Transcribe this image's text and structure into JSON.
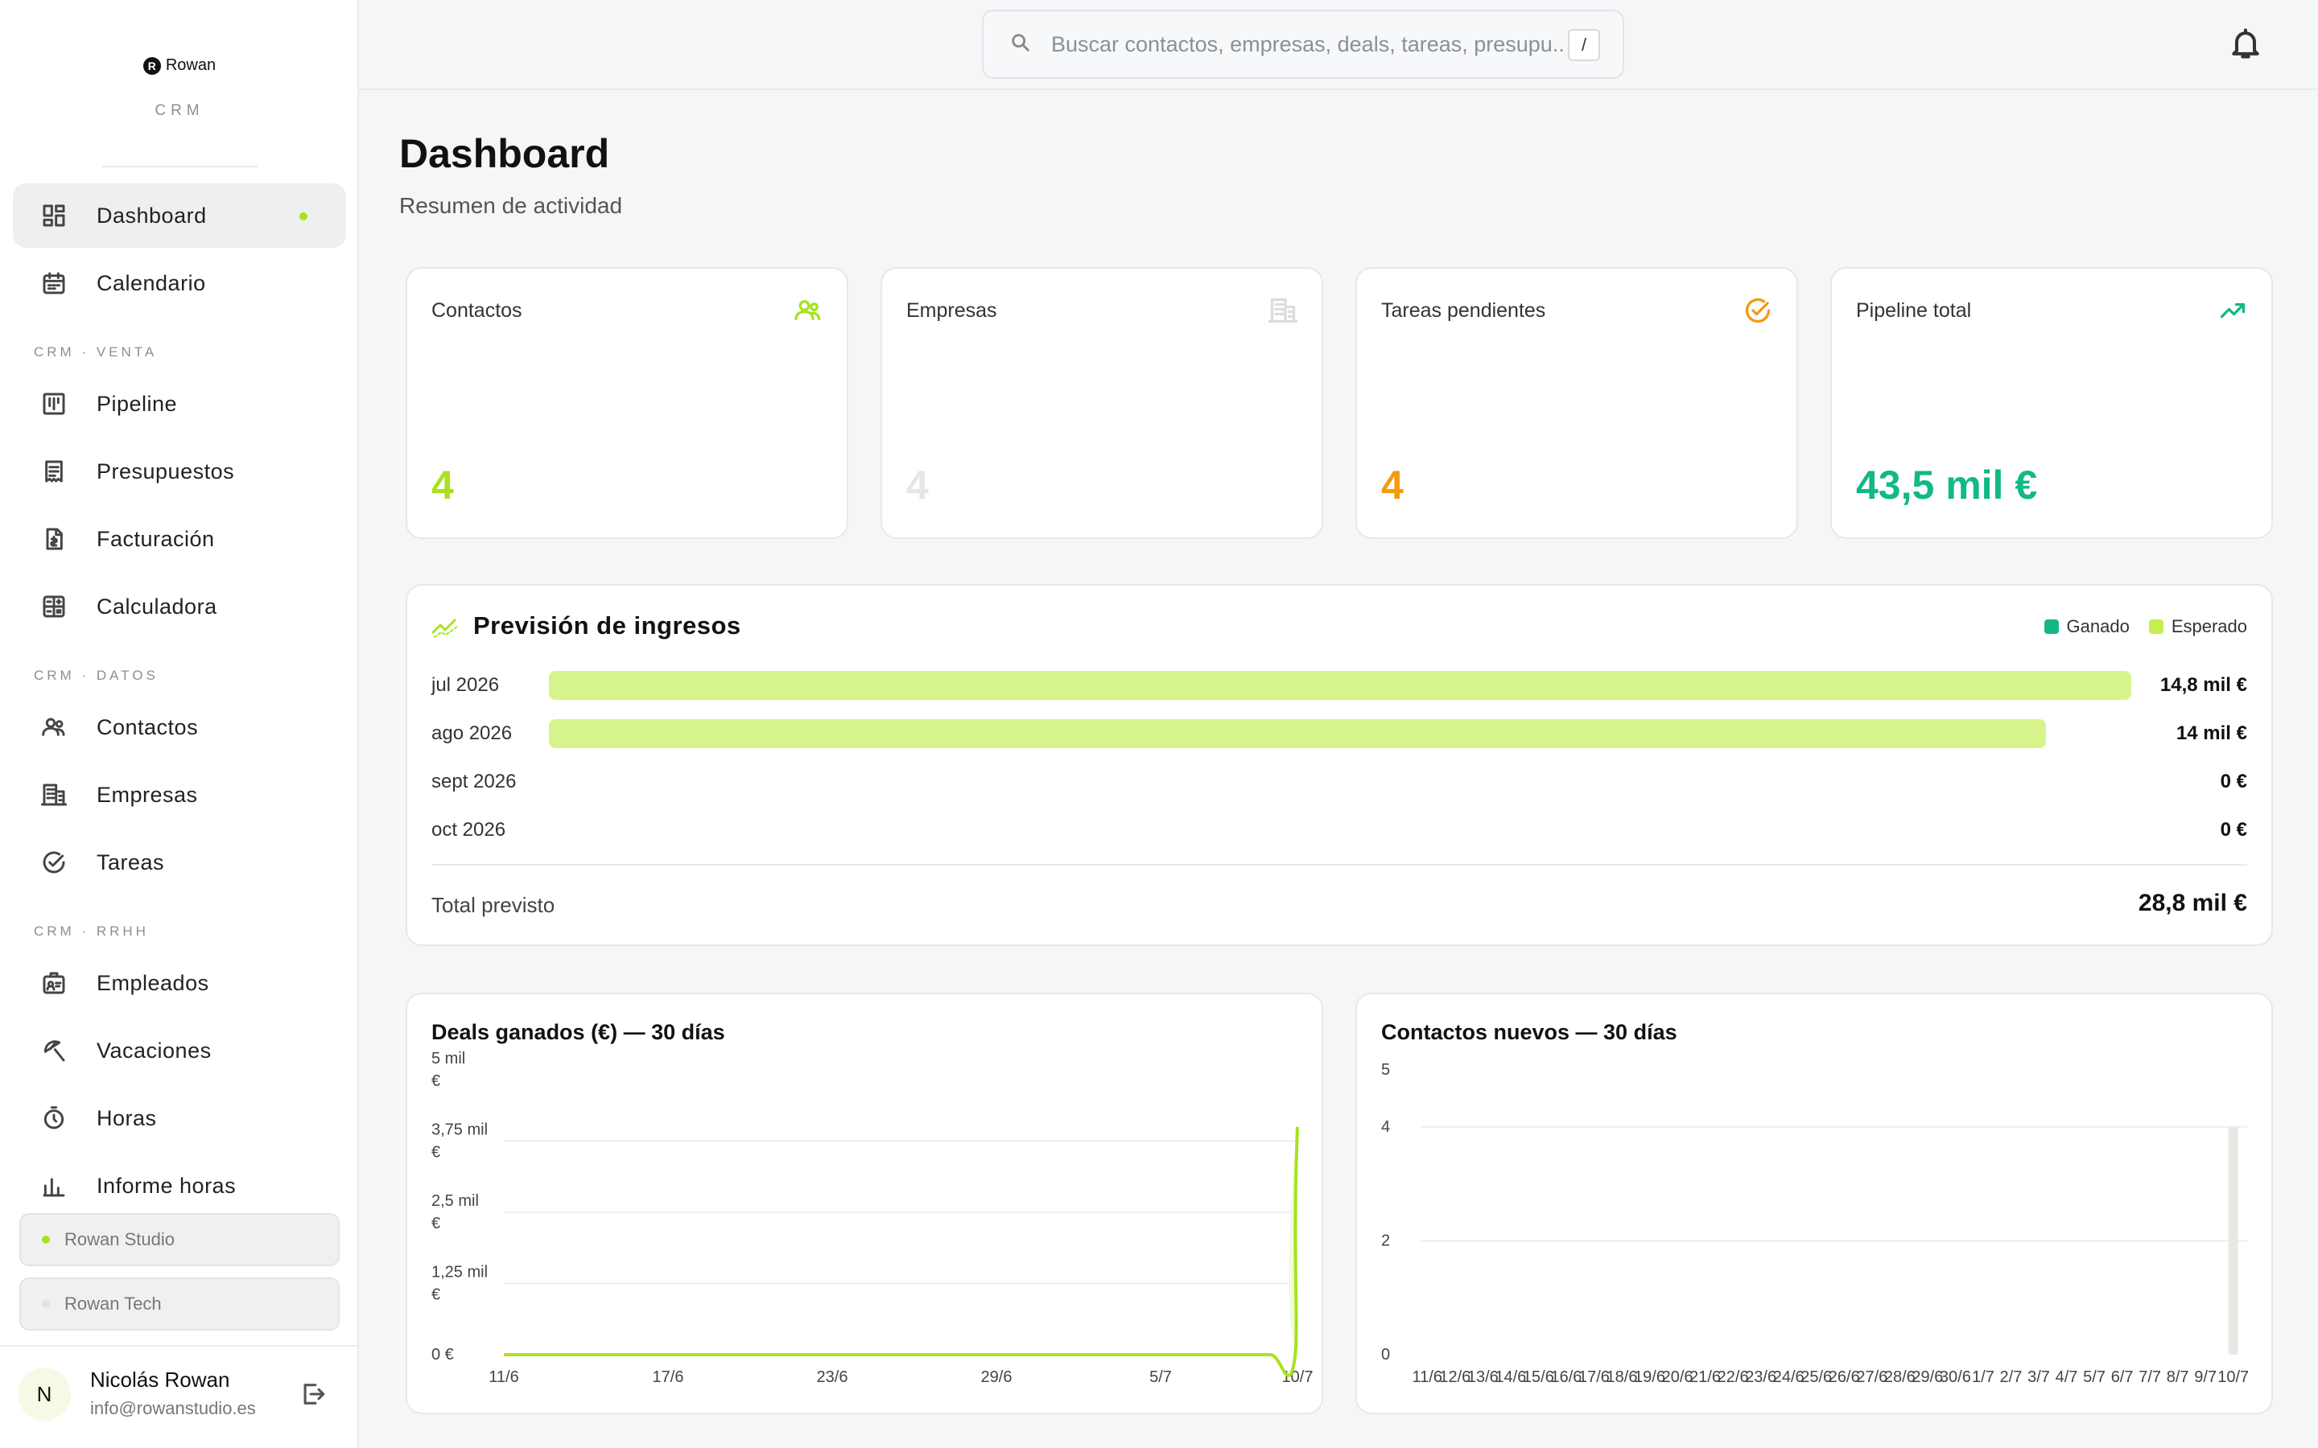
{
  "brand": {
    "logo_text": "Rowan",
    "logo_mark": "R",
    "subtitle": "CRM"
  },
  "sidebar": {
    "items": [
      {
        "label": "Dashboard",
        "icon": "dashboard-icon",
        "active": true
      },
      {
        "label": "Calendario",
        "icon": "calendar-icon"
      },
      {
        "label": "Pipeline",
        "icon": "pipeline-icon"
      },
      {
        "label": "Presupuestos",
        "icon": "receipt-icon"
      },
      {
        "label": "Facturación",
        "icon": "invoice-icon"
      },
      {
        "label": "Calculadora",
        "icon": "calculator-icon"
      },
      {
        "label": "Contactos",
        "icon": "contacts-icon"
      },
      {
        "label": "Empresas",
        "icon": "building-icon"
      },
      {
        "label": "Tareas",
        "icon": "check-circle-icon"
      },
      {
        "label": "Empleados",
        "icon": "badge-icon"
      },
      {
        "label": "Vacaciones",
        "icon": "beach-icon"
      },
      {
        "label": "Horas",
        "icon": "timer-icon"
      },
      {
        "label": "Informe horas",
        "icon": "bar-chart-icon"
      }
    ],
    "sections": [
      "CRM · VENTA",
      "CRM · DATOS",
      "CRM · RRHH"
    ],
    "workspaces": [
      {
        "label": "Rowan Studio",
        "dot_color": "#a8e21f"
      },
      {
        "label": "Rowan Tech",
        "dot_color": "#e2e2e2"
      }
    ]
  },
  "user": {
    "initial": "N",
    "name": "Nicolás Rowan",
    "email": "info@rowanstudio.es"
  },
  "search": {
    "placeholder": "Buscar contactos, empresas, deals, tareas, presupu...",
    "shortcut": "/"
  },
  "header": {
    "title": "Dashboard",
    "subtitle": "Resumen de actividad"
  },
  "stats": [
    {
      "label": "Contactos",
      "value": "4",
      "color": "#a8e21f",
      "icon": "contacts-icon"
    },
    {
      "label": "Empresas",
      "value": "4",
      "color": "#e6e6e6",
      "icon": "building-icon"
    },
    {
      "label": "Tareas pendientes",
      "value": "4",
      "color": "#f29b11",
      "icon": "check-circle-icon"
    },
    {
      "label": "Pipeline total",
      "value": "43,5 mil €",
      "color": "#12b886",
      "icon": "trending-up-icon"
    }
  ],
  "forecast": {
    "title": "Previsión de ingresos",
    "legend": [
      {
        "label": "Ganado",
        "color": "#12b886"
      },
      {
        "label": "Esperado",
        "color": "#c5ef4f"
      }
    ],
    "rows": [
      {
        "month": "jul 2026",
        "amount": "14,8 mil €",
        "value": 14.8
      },
      {
        "month": "ago 2026",
        "amount": "14 mil €",
        "value": 14.0
      },
      {
        "month": "sept 2026",
        "amount": "0 €",
        "value": 0
      },
      {
        "month": "oct 2026",
        "amount": "0 €",
        "value": 0
      }
    ],
    "total_label": "Total previsto",
    "total_value": "28,8 mil €"
  },
  "chart_data": [
    {
      "type": "line",
      "title": "Deals ganados (€) — 30 días",
      "x": [
        "11/6",
        "12/6",
        "13/6",
        "14/6",
        "15/6",
        "16/6",
        "17/6",
        "18/6",
        "19/6",
        "20/6",
        "21/6",
        "22/6",
        "23/6",
        "24/6",
        "25/6",
        "26/6",
        "27/6",
        "28/6",
        "29/6",
        "30/6",
        "1/7",
        "2/7",
        "3/7",
        "4/7",
        "5/7",
        "6/7",
        "7/7",
        "8/7",
        "9/7",
        "10/7"
      ],
      "tick_labels": [
        "11/6",
        "17/6",
        "23/6",
        "29/6",
        "5/7",
        "10/7"
      ],
      "y_tick_labels": [
        "0 €",
        "1,25 mil €",
        "2,5 mil €",
        "3,75 mil €",
        "5 mil €"
      ],
      "ylim": [
        0,
        5000
      ],
      "series": [
        {
          "values": [
            0,
            0,
            0,
            0,
            0,
            0,
            0,
            0,
            0,
            0,
            0,
            0,
            0,
            0,
            0,
            0,
            0,
            0,
            0,
            0,
            0,
            0,
            0,
            0,
            0,
            0,
            0,
            0,
            0,
            4000
          ],
          "color": "#a8e21f"
        }
      ],
      "grid": true
    },
    {
      "type": "bar",
      "title": "Contactos nuevos — 30 días",
      "categories": [
        "11/6",
        "12/6",
        "13/6",
        "14/6",
        "15/6",
        "16/6",
        "17/6",
        "18/6",
        "19/6",
        "20/6",
        "21/6",
        "22/6",
        "23/6",
        "24/6",
        "25/6",
        "26/6",
        "27/6",
        "28/6",
        "29/6",
        "30/6",
        "1/7",
        "2/7",
        "3/7",
        "4/7",
        "5/7",
        "6/7",
        "7/7",
        "8/7",
        "9/7",
        "10/7"
      ],
      "y_tick_labels": [
        "0",
        "2",
        "4",
        "5"
      ],
      "ylim": [
        0,
        5
      ],
      "series": [
        {
          "values": [
            0,
            0,
            0,
            0,
            0,
            0,
            0,
            0,
            0,
            0,
            0,
            0,
            0,
            0,
            0,
            0,
            0,
            0,
            0,
            0,
            0,
            0,
            0,
            0,
            0,
            0,
            0,
            0,
            0,
            4
          ],
          "color": "#e8e8e4"
        }
      ],
      "grid": true
    }
  ]
}
